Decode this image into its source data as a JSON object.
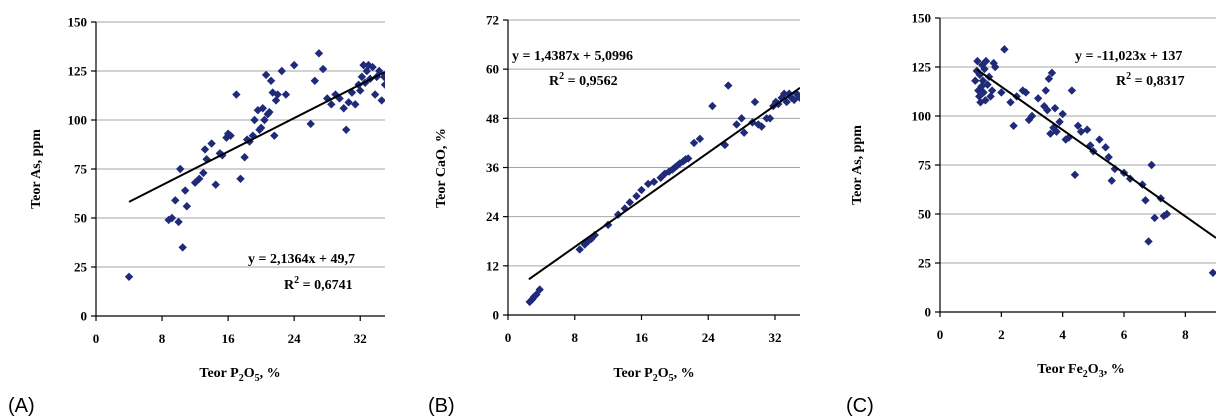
{
  "chart_data": [
    {
      "type": "scatter",
      "panel_label": "(A)",
      "xlabel_main": "Teor P",
      "xlabel_sub": "2",
      "xlabel_post": "O",
      "xlabel_sub2": "5",
      "xlabel_end": ", %",
      "ylabel": "Teor As, ppm",
      "xlim": [
        0,
        35
      ],
      "ylim": [
        0,
        150
      ],
      "xticks": [
        0,
        8,
        16,
        24,
        32
      ],
      "yticks": [
        0,
        25,
        50,
        75,
        100,
        125,
        150
      ],
      "grid": true,
      "trendline": {
        "slope": 2.1364,
        "intercept": 49.7,
        "x_from": 4,
        "x_to": 35
      },
      "equation": "y = 2,1364x + 49,7",
      "r2_prefix": "R",
      "r2_sup": "2",
      "r2_value": " = 0,6741",
      "points": [
        [
          4,
          20
        ],
        [
          8.8,
          49
        ],
        [
          9.2,
          50
        ],
        [
          9.6,
          59
        ],
        [
          10,
          48
        ],
        [
          10.2,
          75
        ],
        [
          10.5,
          35
        ],
        [
          10.8,
          64
        ],
        [
          11,
          56
        ],
        [
          12,
          68
        ],
        [
          12.5,
          70
        ],
        [
          13,
          73
        ],
        [
          13.2,
          85
        ],
        [
          13.4,
          80
        ],
        [
          14,
          88
        ],
        [
          14.5,
          67
        ],
        [
          15,
          83
        ],
        [
          15.3,
          82
        ],
        [
          15.8,
          91
        ],
        [
          16,
          93
        ],
        [
          16.3,
          92
        ],
        [
          17,
          113
        ],
        [
          17.5,
          70
        ],
        [
          18,
          81
        ],
        [
          18.3,
          90
        ],
        [
          18.6,
          89
        ],
        [
          19,
          92
        ],
        [
          19.2,
          100
        ],
        [
          19.6,
          105
        ],
        [
          19.8,
          95
        ],
        [
          20,
          96
        ],
        [
          20.2,
          106
        ],
        [
          20.4,
          100
        ],
        [
          20.6,
          123
        ],
        [
          20.8,
          103
        ],
        [
          21,
          104
        ],
        [
          21.2,
          120
        ],
        [
          21.4,
          114
        ],
        [
          21.6,
          92
        ],
        [
          21.8,
          110
        ],
        [
          22,
          113
        ],
        [
          22.5,
          125
        ],
        [
          23,
          113
        ],
        [
          24,
          128
        ],
        [
          26,
          98
        ],
        [
          26.5,
          120
        ],
        [
          27,
          134
        ],
        [
          27.5,
          126
        ],
        [
          28,
          111
        ],
        [
          28.5,
          108
        ],
        [
          29,
          113
        ],
        [
          29.5,
          111
        ],
        [
          30,
          106
        ],
        [
          30.3,
          95
        ],
        [
          30.6,
          109
        ],
        [
          31,
          114
        ],
        [
          31.4,
          108
        ],
        [
          31.8,
          118
        ],
        [
          32,
          115
        ],
        [
          32.2,
          122
        ],
        [
          32.4,
          128
        ],
        [
          32.6,
          119
        ],
        [
          32.8,
          125
        ],
        [
          33,
          128
        ],
        [
          33.2,
          121
        ],
        [
          33.5,
          127
        ],
        [
          33.8,
          113
        ],
        [
          34,
          122
        ],
        [
          34.3,
          125
        ],
        [
          34.6,
          110
        ],
        [
          34.9,
          122
        ],
        [
          35,
          118
        ]
      ]
    },
    {
      "type": "scatter",
      "panel_label": "(B)",
      "xlabel_main": "Teor P",
      "xlabel_sub": "2",
      "xlabel_post": "O",
      "xlabel_sub2": "5",
      "xlabel_end": ", %",
      "ylabel": "Teor CaO, %",
      "xlim": [
        0,
        35
      ],
      "ylim": [
        0,
        72
      ],
      "xticks": [
        0,
        8,
        16,
        24,
        32
      ],
      "yticks": [
        0,
        12,
        24,
        36,
        48,
        60,
        72
      ],
      "grid": true,
      "trendline": {
        "slope": 1.4387,
        "intercept": 5.0996,
        "x_from": 2.5,
        "x_to": 35
      },
      "equation": "y = 1,4387x + 5,0996",
      "r2_prefix": "R",
      "r2_sup": "2",
      "r2_value": " = 0,9562",
      "points": [
        [
          2.6,
          3.2
        ],
        [
          2.9,
          3.8
        ],
        [
          3.1,
          4.4
        ],
        [
          3.4,
          5
        ],
        [
          3.8,
          6.2
        ],
        [
          8.6,
          16
        ],
        [
          9.2,
          17.2
        ],
        [
          9.6,
          18
        ],
        [
          10,
          18.6
        ],
        [
          10.4,
          19.5
        ],
        [
          12,
          22
        ],
        [
          13.2,
          24.5
        ],
        [
          14,
          26
        ],
        [
          14.6,
          27.5
        ],
        [
          15.4,
          29
        ],
        [
          16,
          30.5
        ],
        [
          16.8,
          32
        ],
        [
          17.5,
          32.5
        ],
        [
          18.3,
          33.5
        ],
        [
          18.8,
          34.5
        ],
        [
          19.3,
          35
        ],
        [
          19.7,
          35.5
        ],
        [
          20,
          36
        ],
        [
          20.3,
          36.5
        ],
        [
          20.6,
          37
        ],
        [
          21,
          37.5
        ],
        [
          21.3,
          38
        ],
        [
          21.6,
          38.2
        ],
        [
          22.3,
          42
        ],
        [
          23,
          43
        ],
        [
          24.5,
          51
        ],
        [
          26,
          41.5
        ],
        [
          26.4,
          56
        ],
        [
          27.4,
          46.5
        ],
        [
          28,
          48
        ],
        [
          28.3,
          44.5
        ],
        [
          29.3,
          47
        ],
        [
          29.6,
          52
        ],
        [
          30,
          46.5
        ],
        [
          30.4,
          46
        ],
        [
          31,
          48
        ],
        [
          31.4,
          48
        ],
        [
          31.8,
          51
        ],
        [
          32.1,
          52
        ],
        [
          32.4,
          51.5
        ],
        [
          32.8,
          53
        ],
        [
          33.1,
          54
        ],
        [
          33.4,
          52
        ],
        [
          33.7,
          54
        ],
        [
          34,
          53
        ],
        [
          34.3,
          52.5
        ],
        [
          34.6,
          54
        ],
        [
          35,
          53
        ]
      ]
    },
    {
      "type": "scatter",
      "panel_label": "(C)",
      "xlabel_main": "Teor Fe",
      "xlabel_sub": "2",
      "xlabel_post": "O",
      "xlabel_sub2": "3",
      "xlabel_end": ", %",
      "ylabel": "Teor As, ppm",
      "xlim": [
        0,
        9
      ],
      "ylim": [
        0,
        150
      ],
      "xticks": [
        0,
        2,
        4,
        6,
        8
      ],
      "yticks": [
        0,
        25,
        50,
        75,
        100,
        125,
        150
      ],
      "grid": true,
      "trendline": {
        "slope": -11.023,
        "intercept": 137,
        "x_from": 1.2,
        "x_to": 9
      },
      "equation": "y = -11,023x + 137",
      "r2_prefix": "R",
      "r2_sup": "2",
      "r2_value": " = 0,8317",
      "points": [
        [
          1.15,
          118
        ],
        [
          1.2,
          123
        ],
        [
          1.22,
          128
        ],
        [
          1.25,
          113
        ],
        [
          1.28,
          110
        ],
        [
          1.3,
          121
        ],
        [
          1.32,
          107
        ],
        [
          1.35,
          115
        ],
        [
          1.38,
          126
        ],
        [
          1.4,
          118
        ],
        [
          1.42,
          112
        ],
        [
          1.45,
          124
        ],
        [
          1.48,
          108
        ],
        [
          1.5,
          128
        ],
        [
          1.55,
          116
        ],
        [
          1.6,
          120
        ],
        [
          1.65,
          110
        ],
        [
          1.7,
          113
        ],
        [
          1.75,
          127
        ],
        [
          1.8,
          125
        ],
        [
          2,
          112
        ],
        [
          2.1,
          134
        ],
        [
          2.3,
          107
        ],
        [
          2.4,
          95
        ],
        [
          2.5,
          110
        ],
        [
          2.7,
          113
        ],
        [
          2.8,
          112
        ],
        [
          2.9,
          98
        ],
        [
          3,
          100
        ],
        [
          3.2,
          109
        ],
        [
          3.4,
          105
        ],
        [
          3.45,
          113
        ],
        [
          3.5,
          103
        ],
        [
          3.55,
          119
        ],
        [
          3.6,
          91
        ],
        [
          3.65,
          122
        ],
        [
          3.7,
          94
        ],
        [
          3.75,
          104
        ],
        [
          3.8,
          92
        ],
        [
          3.9,
          97
        ],
        [
          4,
          101
        ],
        [
          4.1,
          88
        ],
        [
          4.2,
          89
        ],
        [
          4.3,
          113
        ],
        [
          4.4,
          70
        ],
        [
          4.5,
          95
        ],
        [
          4.6,
          92
        ],
        [
          4.8,
          93
        ],
        [
          4.9,
          85
        ],
        [
          5,
          82
        ],
        [
          5.2,
          88
        ],
        [
          5.4,
          84
        ],
        [
          5.5,
          79
        ],
        [
          5.6,
          67
        ],
        [
          5.7,
          73
        ],
        [
          6,
          71
        ],
        [
          6.2,
          68
        ],
        [
          6.6,
          65
        ],
        [
          6.7,
          57
        ],
        [
          6.8,
          36
        ],
        [
          6.9,
          75
        ],
        [
          7,
          48
        ],
        [
          7.2,
          58
        ],
        [
          7.3,
          49
        ],
        [
          7.4,
          50
        ],
        [
          8.9,
          20
        ]
      ]
    }
  ],
  "panel_positions": null
}
